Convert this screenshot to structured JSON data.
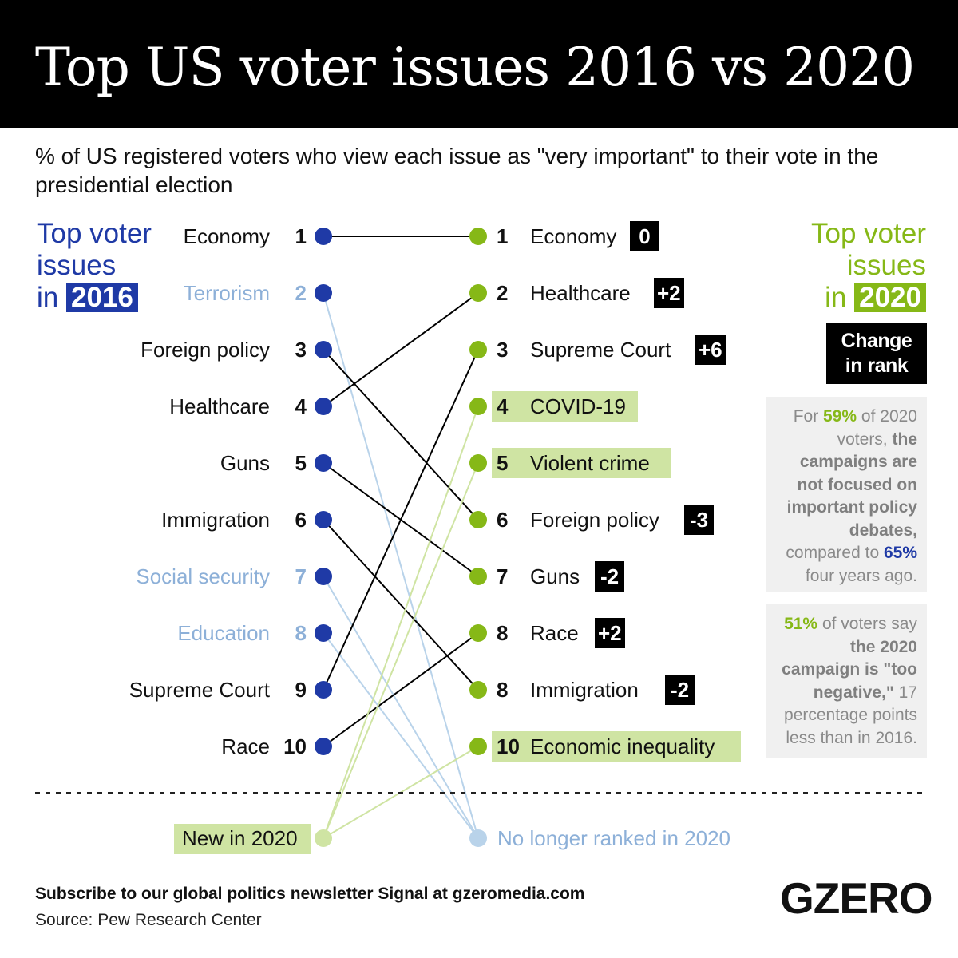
{
  "header": {
    "title": "Top US voter issues 2016 vs 2020"
  },
  "subtitle": "% of US registered voters who view each issue as \"very important\" to their vote in the presidential election",
  "left_heading": {
    "line1": "Top voter",
    "line2": "issues",
    "prefix": "in",
    "year": "2016"
  },
  "right_heading": {
    "line1": "Top voter",
    "line2": "issues",
    "prefix": "in",
    "year": "2020"
  },
  "change_box": {
    "line1": "Change",
    "line2": "in rank"
  },
  "notes": {
    "note1": {
      "t1": "For",
      "pct1": "59%",
      "t2": "of 2020 voters,",
      "bold": "the campaigns are not focused on important policy debates,",
      "t3": "compared to",
      "pct2": "65%",
      "t4": "four years ago."
    },
    "note2": {
      "pct": "51%",
      "t1": "of voters say",
      "bold": "the 2020 campaign is \"too negative,\"",
      "t2": "17 percentage points less than in 2016."
    }
  },
  "legend": {
    "new": "New in 2020",
    "gone": "No longer ranked in 2020"
  },
  "footer": {
    "subscribe": "Subscribe to our global politics newsletter Signal at gzeromedia.com",
    "source": "Source: Pew Research Center"
  },
  "logo": "GZERO",
  "colors": {
    "blue": "#1f3aa6",
    "green": "#86b817",
    "muted_blue": "#8db0d8",
    "light_green": "#cfe4a3"
  },
  "chart_data": {
    "type": "slope",
    "left_year": "2016",
    "right_year": "2020",
    "left": [
      {
        "rank": "1",
        "issue": "Economy",
        "status": "ranked"
      },
      {
        "rank": "2",
        "issue": "Terrorism",
        "status": "dropped"
      },
      {
        "rank": "3",
        "issue": "Foreign policy",
        "status": "ranked"
      },
      {
        "rank": "4",
        "issue": "Healthcare",
        "status": "ranked"
      },
      {
        "rank": "5",
        "issue": "Guns",
        "status": "ranked"
      },
      {
        "rank": "6",
        "issue": "Immigration",
        "status": "ranked"
      },
      {
        "rank": "7",
        "issue": "Social security",
        "status": "dropped"
      },
      {
        "rank": "8",
        "issue": "Education",
        "status": "dropped"
      },
      {
        "rank": "9",
        "issue": "Supreme Court",
        "status": "ranked"
      },
      {
        "rank": "10",
        "issue": "Race",
        "status": "ranked"
      }
    ],
    "right": [
      {
        "rank": "1",
        "issue": "Economy",
        "change": "0",
        "new": false
      },
      {
        "rank": "2",
        "issue": "Healthcare",
        "change": "+2",
        "new": false
      },
      {
        "rank": "3",
        "issue": "Supreme Court",
        "change": "+6",
        "new": false
      },
      {
        "rank": "4",
        "issue": "COVID-19",
        "change": "",
        "new": true
      },
      {
        "rank": "5",
        "issue": "Violent crime",
        "change": "",
        "new": true
      },
      {
        "rank": "6",
        "issue": "Foreign policy",
        "change": "-3",
        "new": false
      },
      {
        "rank": "7",
        "issue": "Guns",
        "change": "-2",
        "new": false
      },
      {
        "rank": "8",
        "issue": "Race",
        "change": "+2",
        "new": false
      },
      {
        "rank": "8",
        "issue": "Immigration",
        "change": "-2",
        "new": false
      },
      {
        "rank": "10",
        "issue": "Economic inequality",
        "change": "",
        "new": true
      }
    ]
  }
}
